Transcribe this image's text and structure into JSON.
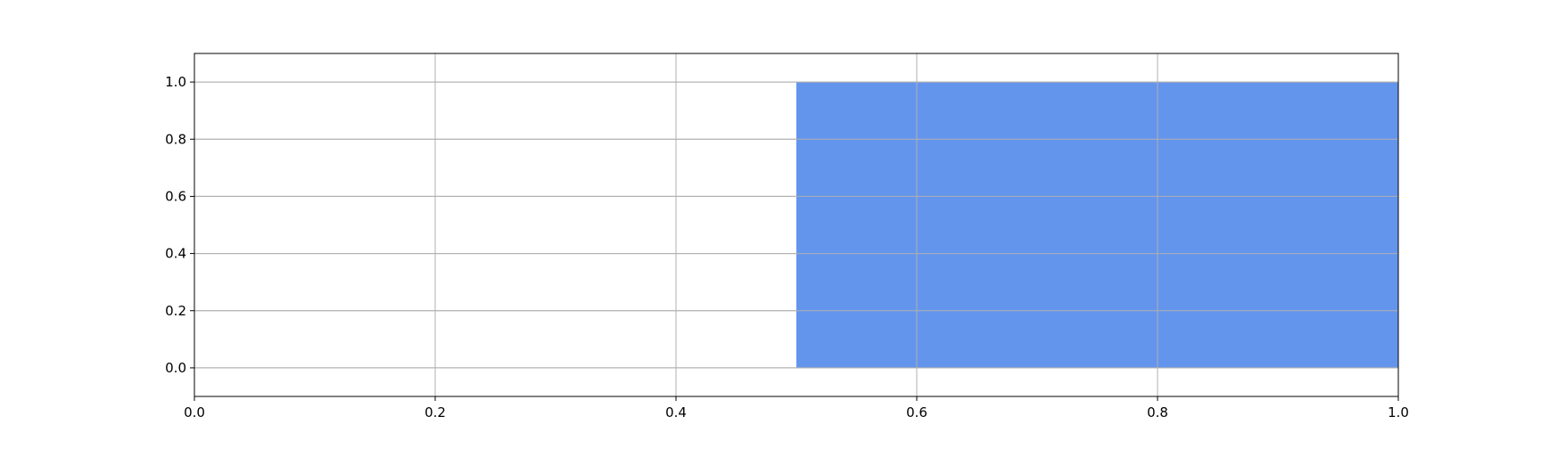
{
  "chart_data": {
    "type": "area",
    "title": "",
    "xlabel": "",
    "ylabel": "",
    "xlim": [
      0.0,
      1.0
    ],
    "ylim": [
      -0.1,
      1.1
    ],
    "grid": true,
    "x_ticks": [
      0.0,
      0.2,
      0.4,
      0.6,
      0.8,
      1.0
    ],
    "x_tick_labels": [
      "0.0",
      "0.2",
      "0.4",
      "0.6",
      "0.8",
      "1.0"
    ],
    "y_ticks": [
      0.0,
      0.2,
      0.4,
      0.6,
      0.8,
      1.0
    ],
    "y_tick_labels": [
      "0.0",
      "0.2",
      "0.4",
      "0.6",
      "0.8",
      "1.0"
    ],
    "series": [
      {
        "x_start": 0.5,
        "x_end": 1.0,
        "y_bottom": 0.0,
        "y_top": 1.0,
        "color": "#6495ed"
      }
    ]
  }
}
